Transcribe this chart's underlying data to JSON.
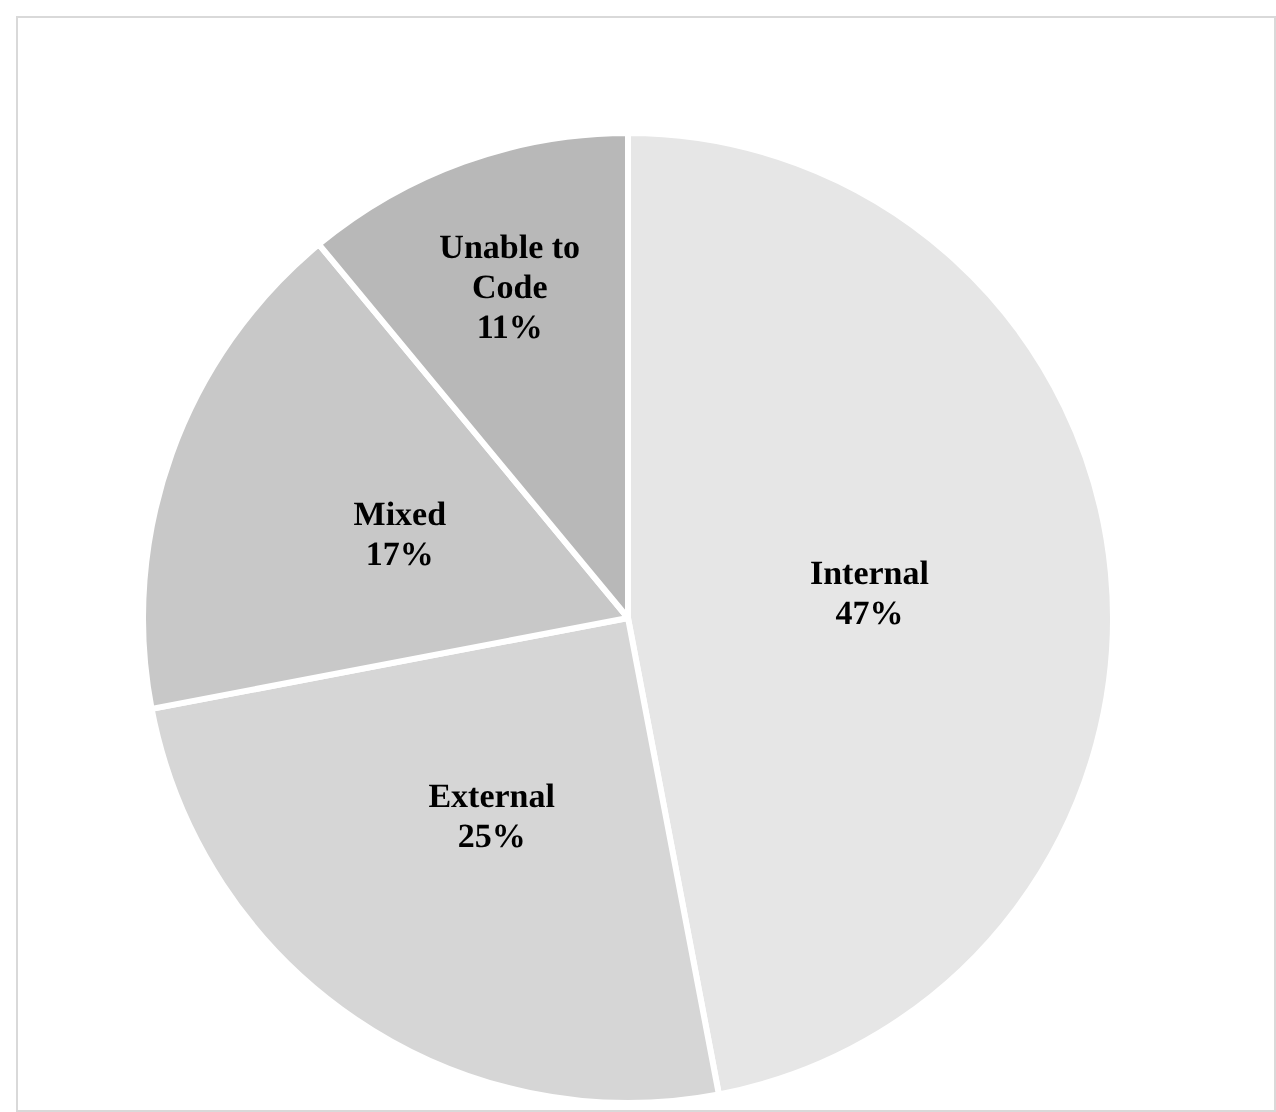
{
  "chart_data": {
    "type": "pie",
    "categories": [
      "Internal",
      "External",
      "Mixed",
      "Unable to Code"
    ],
    "values": [
      47,
      25,
      17,
      11
    ],
    "value_labels": [
      "47%",
      "25%",
      "17%",
      "11%"
    ],
    "colors": [
      "#e6e6e6",
      "#d6d6d6",
      "#c8c8c8",
      "#b8b8b8"
    ],
    "legend": false
  }
}
